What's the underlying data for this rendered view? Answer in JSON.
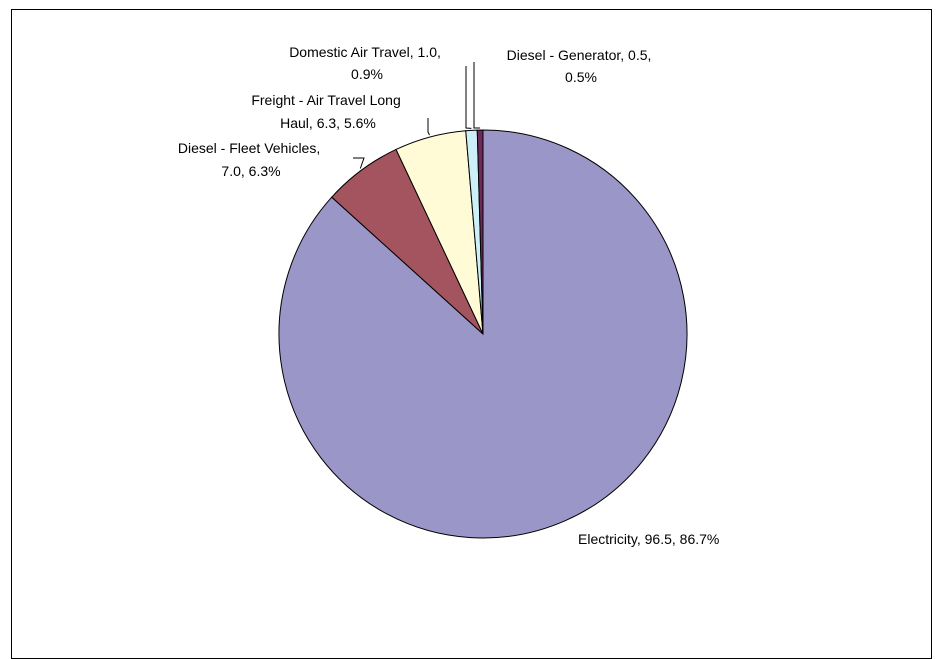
{
  "chart_data": {
    "type": "pie",
    "start_angle_deg": 0,
    "direction": "clockwise",
    "legend": "none",
    "slices": [
      {
        "label": "Electricity",
        "value": 96.5,
        "percent": "86.7%",
        "color": "#9B96C8",
        "value_text": "96.5",
        "label_lines": [
          "Electricity, 96.5, 86.7%"
        ]
      },
      {
        "label": "Diesel - Fleet Vehicles",
        "value": 7.0,
        "percent": "6.3%",
        "color": "#A4545E",
        "value_text": "7.0",
        "label_lines": [
          "Diesel - Fleet Vehicles,",
          "7.0, 6.3%"
        ]
      },
      {
        "label": "Freight - Air Travel Long Haul",
        "value": 6.3,
        "percent": "5.6%",
        "color": "#FFFBD6",
        "value_text": "6.3",
        "label_lines": [
          "Freight - Air Travel Long",
          "Haul, 6.3, 5.6%"
        ]
      },
      {
        "label": "Domestic Air Travel",
        "value": 1.0,
        "percent": "0.9%",
        "color": "#CDEFF8",
        "value_text": "1.0",
        "label_lines": [
          "Domestic Air Travel, 1.0,",
          "0.9%"
        ]
      },
      {
        "label": "Diesel - Generator",
        "value": 0.5,
        "percent": "0.5%",
        "color": "#6B2A5A",
        "value_text": "0.5",
        "label_lines": [
          "Diesel - Generator, 0.5,",
          "0.5%"
        ]
      }
    ]
  }
}
